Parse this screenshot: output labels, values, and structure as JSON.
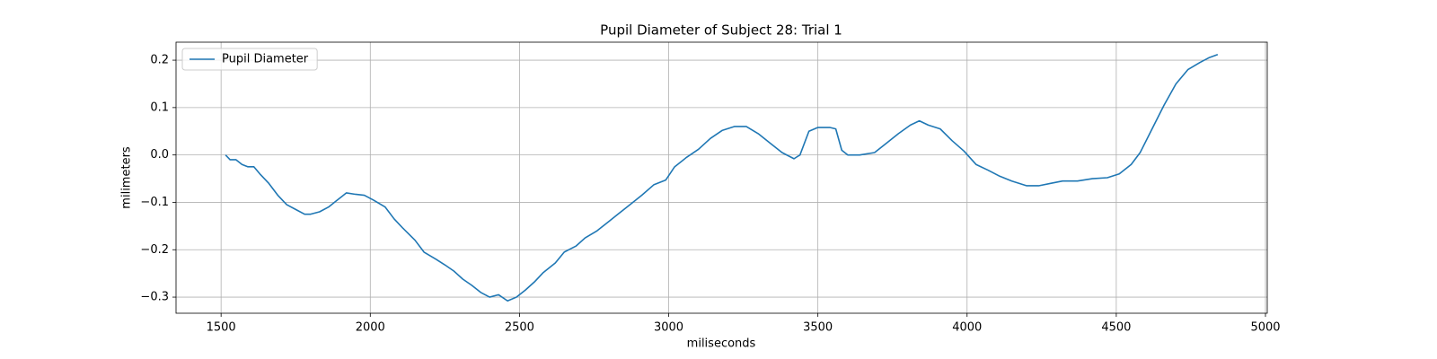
{
  "chart_data": {
    "type": "line",
    "title": "Pupil Diameter of Subject 28: Trial 1",
    "x_label": "miliseconds",
    "y_label": "milimeters",
    "x": [
      1515,
      1530,
      1550,
      1570,
      1590,
      1610,
      1630,
      1660,
      1690,
      1720,
      1750,
      1780,
      1800,
      1830,
      1860,
      1890,
      1920,
      1950,
      1980,
      2010,
      2050,
      2080,
      2110,
      2150,
      2180,
      2220,
      2250,
      2280,
      2310,
      2340,
      2370,
      2400,
      2430,
      2460,
      2490,
      2520,
      2550,
      2580,
      2620,
      2650,
      2690,
      2720,
      2760,
      2800,
      2830,
      2870,
      2910,
      2950,
      2990,
      3020,
      3060,
      3100,
      3140,
      3180,
      3220,
      3260,
      3300,
      3340,
      3380,
      3420,
      3440,
      3470,
      3500,
      3540,
      3560,
      3580,
      3600,
      3640,
      3690,
      3730,
      3770,
      3810,
      3840,
      3870,
      3910,
      3950,
      3990,
      4030,
      4070,
      4110,
      4150,
      4200,
      4240,
      4280,
      4320,
      4370,
      4420,
      4470,
      4510,
      4550,
      4580,
      4620,
      4660,
      4700,
      4740,
      4780,
      4810,
      4840
    ],
    "series": [
      {
        "name": "Pupil Diameter",
        "color": "#1f77b4",
        "values": [
          0.0,
          -0.01,
          -0.01,
          -0.02,
          -0.025,
          -0.025,
          -0.04,
          -0.06,
          -0.085,
          -0.105,
          -0.115,
          -0.125,
          -0.125,
          -0.12,
          -0.11,
          -0.095,
          -0.08,
          -0.083,
          -0.085,
          -0.095,
          -0.11,
          -0.135,
          -0.155,
          -0.18,
          -0.205,
          -0.22,
          -0.232,
          -0.245,
          -0.262,
          -0.275,
          -0.29,
          -0.3,
          -0.295,
          -0.308,
          -0.3,
          -0.285,
          -0.268,
          -0.248,
          -0.228,
          -0.205,
          -0.192,
          -0.175,
          -0.16,
          -0.14,
          -0.125,
          -0.105,
          -0.085,
          -0.063,
          -0.053,
          -0.025,
          -0.005,
          0.012,
          0.035,
          0.052,
          0.06,
          0.06,
          0.045,
          0.025,
          0.005,
          -0.008,
          0.0,
          0.05,
          0.058,
          0.058,
          0.055,
          0.01,
          0.0,
          0.0,
          0.005,
          0.025,
          0.045,
          0.063,
          0.072,
          0.063,
          0.055,
          0.03,
          0.008,
          -0.02,
          -0.032,
          -0.045,
          -0.055,
          -0.065,
          -0.065,
          -0.06,
          -0.055,
          -0.055,
          -0.05,
          -0.048,
          -0.04,
          -0.02,
          0.005,
          0.055,
          0.105,
          0.15,
          0.18,
          0.195,
          0.205,
          0.212
        ]
      }
    ],
    "xlim": [
      1349,
      5006
    ],
    "ylim": [
      -0.334,
      0.238
    ],
    "xticks": [
      1500,
      2000,
      2500,
      3000,
      3500,
      4000,
      4500,
      5000
    ],
    "yticks": [
      {
        "value": 0.2,
        "label": "0.2"
      },
      {
        "value": 0.1,
        "label": "0.1"
      },
      {
        "value": 0.0,
        "label": "0.0"
      },
      {
        "value": -0.1,
        "label": "−0.1"
      },
      {
        "value": -0.2,
        "label": "−0.2"
      },
      {
        "value": -0.3,
        "label": "−0.3"
      }
    ],
    "grid": true,
    "legend": "upper left"
  }
}
